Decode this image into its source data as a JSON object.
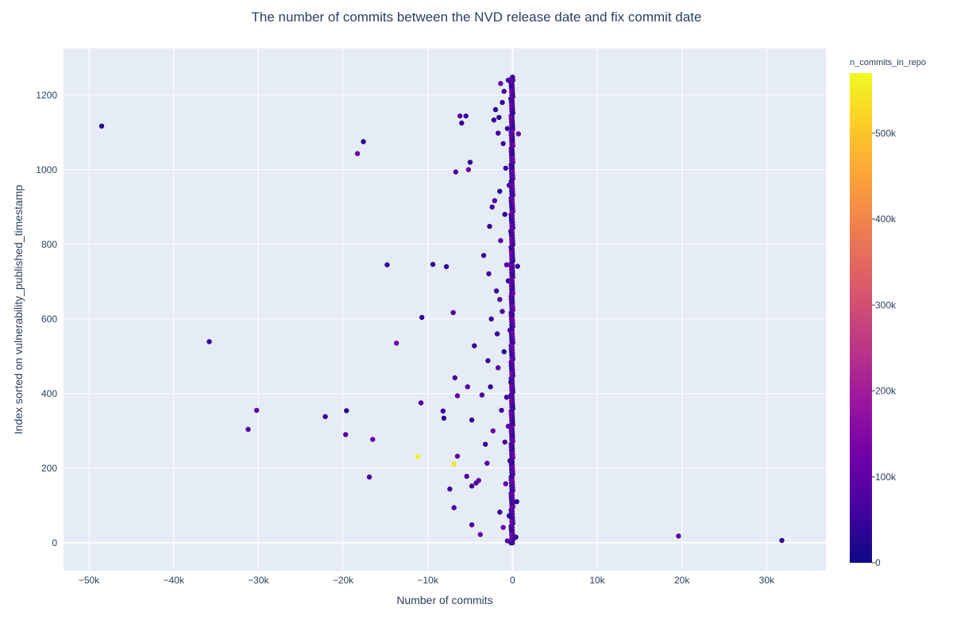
{
  "chart_data": {
    "type": "scatter",
    "title": "The number of commits between the NVD release date and fix commit date",
    "xlabel": "Number of commits",
    "ylabel": "Index sorted on vulnerability_published_timestamp",
    "xlim": [
      -53000,
      37000
    ],
    "ylim": [
      -75,
      1325
    ],
    "x_ticks": [
      -50000,
      -40000,
      -30000,
      -20000,
      -10000,
      0,
      10000,
      20000,
      30000
    ],
    "x_tick_labels": [
      "−50k",
      "−40k",
      "−30k",
      "−20k",
      "−10k",
      "0",
      "10k",
      "20k",
      "30k"
    ],
    "y_ticks": [
      0,
      200,
      400,
      600,
      800,
      1000,
      1200
    ],
    "y_tick_labels": [
      "0",
      "200",
      "400",
      "600",
      "800",
      "1000",
      "1200"
    ],
    "grid": true,
    "colorbar": {
      "title": "n_commits_in_repo",
      "range": [
        0,
        570000
      ],
      "ticks": [
        0,
        100000,
        200000,
        300000,
        400000,
        500000
      ],
      "tick_labels": [
        "0",
        "100k",
        "200k",
        "300k",
        "400k",
        "500k"
      ],
      "colorscale": [
        "#0d0887",
        "#46039f",
        "#7201a8",
        "#9c179e",
        "#bd3786",
        "#d8576b",
        "#ed7953",
        "#fb9f3a",
        "#fdca26",
        "#f0f921"
      ]
    },
    "points": [
      [
        -48500,
        1117,
        30000
      ],
      [
        -35800,
        539,
        40000
      ],
      [
        -31200,
        304,
        80000
      ],
      [
        -30200,
        355,
        90000
      ],
      [
        -22100,
        338,
        40000
      ],
      [
        -19600,
        354,
        30000
      ],
      [
        -19700,
        290,
        90000
      ],
      [
        -18300,
        1043,
        110000
      ],
      [
        -17600,
        1075,
        30000
      ],
      [
        -16900,
        176,
        70000
      ],
      [
        -16500,
        277,
        110000
      ],
      [
        -14800,
        745,
        40000
      ],
      [
        -13700,
        535,
        120000
      ],
      [
        -11200,
        231,
        560000
      ],
      [
        -10800,
        375,
        70000
      ],
      [
        -10700,
        604,
        40000
      ],
      [
        -9400,
        746,
        40000
      ],
      [
        -7800,
        740,
        40000
      ],
      [
        -7400,
        144,
        60000
      ],
      [
        -7000,
        617,
        70000
      ],
      [
        -6900,
        94,
        60000
      ],
      [
        -6800,
        442,
        60000
      ],
      [
        -6900,
        211,
        540000
      ],
      [
        -6700,
        994,
        90000
      ],
      [
        -6500,
        232,
        90000
      ],
      [
        -6500,
        394,
        110000
      ],
      [
        -6200,
        1144,
        70000
      ],
      [
        -6000,
        1125,
        40000
      ],
      [
        -5500,
        1144,
        50000
      ],
      [
        -5200,
        1000,
        110000
      ],
      [
        -5000,
        1020,
        40000
      ],
      [
        -8100,
        334,
        30000
      ],
      [
        -8200,
        353,
        50000
      ],
      [
        -5400,
        178,
        70000
      ],
      [
        -5300,
        418,
        90000
      ],
      [
        -4800,
        152,
        50000
      ],
      [
        -4800,
        329,
        40000
      ],
      [
        -4800,
        48,
        70000
      ],
      [
        -4500,
        528,
        40000
      ],
      [
        -4300,
        160,
        70000
      ],
      [
        -4000,
        167,
        90000
      ],
      [
        -3800,
        22,
        110000
      ],
      [
        -3600,
        396,
        60000
      ],
      [
        -3400,
        770,
        40000
      ],
      [
        -3200,
        264,
        40000
      ],
      [
        -3000,
        213,
        80000
      ],
      [
        -2900,
        488,
        50000
      ],
      [
        -2800,
        721,
        60000
      ],
      [
        -2700,
        848,
        40000
      ],
      [
        -2600,
        418,
        40000
      ],
      [
        -2500,
        600,
        50000
      ],
      [
        -2400,
        900,
        60000
      ],
      [
        -2300,
        300,
        110000
      ],
      [
        -2200,
        1133,
        40000
      ],
      [
        -2100,
        917,
        70000
      ],
      [
        -2000,
        1161,
        30000
      ],
      [
        -1900,
        675,
        50000
      ],
      [
        -1800,
        560,
        40000
      ],
      [
        -1700,
        1098,
        60000
      ],
      [
        -1700,
        469,
        90000
      ],
      [
        -1600,
        1140,
        40000
      ],
      [
        -1500,
        942,
        30000
      ],
      [
        -1500,
        82,
        50000
      ],
      [
        -1500,
        652,
        70000
      ],
      [
        -1400,
        1231,
        110000
      ],
      [
        -1400,
        810,
        90000
      ],
      [
        -1300,
        355,
        60000
      ],
      [
        -1200,
        1180,
        40000
      ],
      [
        -1200,
        620,
        80000
      ],
      [
        -1100,
        1070,
        50000
      ],
      [
        -1100,
        41,
        120000
      ],
      [
        -1000,
        1210,
        70000
      ],
      [
        -1000,
        512,
        30000
      ],
      [
        -900,
        270,
        60000
      ],
      [
        -900,
        880,
        40000
      ],
      [
        -800,
        158,
        100000
      ],
      [
        -800,
        1004,
        50000
      ],
      [
        -700,
        745,
        80000
      ],
      [
        -700,
        390,
        60000
      ],
      [
        -600,
        1110,
        40000
      ],
      [
        -600,
        5,
        90000
      ],
      [
        -500,
        702,
        40000
      ],
      [
        -500,
        1240,
        50000
      ],
      [
        -500,
        312,
        90000
      ],
      [
        -400,
        958,
        60000
      ],
      [
        -400,
        72,
        40000
      ],
      [
        -300,
        570,
        70000
      ],
      [
        -300,
        220,
        40000
      ],
      [
        -200,
        1190,
        40000
      ],
      [
        -200,
        835,
        60000
      ],
      [
        -200,
        430,
        30000
      ],
      [
        -100,
        120,
        90000
      ],
      [
        -100,
        1016,
        50000
      ],
      [
        -100,
        668,
        40000
      ],
      [
        0,
        1248,
        40000
      ],
      [
        0,
        0,
        60000
      ],
      [
        700,
        1096,
        110000
      ],
      [
        600,
        741,
        50000
      ],
      [
        500,
        110,
        40000
      ],
      [
        400,
        15,
        50000
      ],
      [
        19600,
        18,
        90000
      ],
      [
        31800,
        6,
        40000
      ]
    ]
  }
}
